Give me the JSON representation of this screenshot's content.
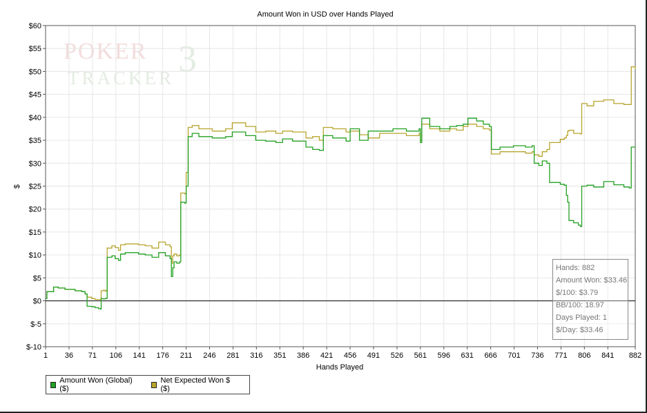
{
  "watermark": {
    "line1": "POKER",
    "line2": "TRACKER",
    "mark": "3"
  },
  "legend": [
    {
      "label": "Amount Won (Global) ($)",
      "color": "#22a022"
    },
    {
      "label": "Net Expected Won $ ($)",
      "color": "#b8a42c"
    }
  ],
  "stats": {
    "hands": "Hands: 882",
    "amount_won": "Amount Won: $33.46",
    "per100": "$/100: $3.79",
    "bb100": "BB/100: 18.97",
    "days": "Days Played: 1",
    "per_day": "$/Day: $33.46"
  },
  "chart_data": {
    "type": "line",
    "title": "Amount Won in USD over Hands Played",
    "xlabel": "Hands Played",
    "ylabel": "$",
    "xlim": [
      1,
      882
    ],
    "ylim": [
      -10,
      60
    ],
    "grid": true,
    "legend_position": "bottom-left",
    "x_ticks": [
      "1",
      "36",
      "71",
      "106",
      "141",
      "176",
      "211",
      "246",
      "281",
      "316",
      "351",
      "386",
      "421",
      "456",
      "491",
      "526",
      "561",
      "596",
      "631",
      "666",
      "701",
      "736",
      "771",
      "806",
      "841",
      "882"
    ],
    "y_ticks": [
      "$60",
      "$55",
      "$50",
      "$45",
      "$40",
      "$35",
      "$30",
      "$25",
      "$20",
      "$15",
      "$10",
      "$5",
      "$0",
      "$-5",
      "$-10"
    ],
    "series": [
      {
        "name": "Amount Won (Global) ($)",
        "color": "#22a022",
        "points": [
          [
            1,
            0.5
          ],
          [
            3,
            2
          ],
          [
            8,
            2
          ],
          [
            13,
            3
          ],
          [
            20,
            2.8
          ],
          [
            30,
            2.5
          ],
          [
            45,
            2.2
          ],
          [
            55,
            2
          ],
          [
            60,
            1.5
          ],
          [
            63,
            -1.2
          ],
          [
            70,
            -1.3
          ],
          [
            75,
            -1.5
          ],
          [
            80,
            -1.7
          ],
          [
            83,
            -1.8
          ],
          [
            84,
            0.5
          ],
          [
            87,
            0.4
          ],
          [
            90,
            0.5
          ],
          [
            92,
            0.6
          ],
          [
            93,
            9.5
          ],
          [
            100,
            9.8
          ],
          [
            105,
            9.2
          ],
          [
            110,
            8.8
          ],
          [
            113,
            10.2
          ],
          [
            120,
            10.5
          ],
          [
            140,
            10.2
          ],
          [
            150,
            10
          ],
          [
            160,
            9.5
          ],
          [
            170,
            10.5
          ],
          [
            180,
            9.8
          ],
          [
            187,
            9.2
          ],
          [
            189,
            5.3
          ],
          [
            191,
            7.2
          ],
          [
            193,
            8.5
          ],
          [
            197,
            8.2
          ],
          [
            201,
            8.5
          ],
          [
            203,
            21.5
          ],
          [
            209,
            21.3
          ],
          [
            211,
            25
          ],
          [
            214,
            35.8
          ],
          [
            220,
            36.5
          ],
          [
            230,
            35.8
          ],
          [
            250,
            35.5
          ],
          [
            270,
            35.8
          ],
          [
            280,
            36.8
          ],
          [
            300,
            36
          ],
          [
            315,
            35
          ],
          [
            330,
            34.8
          ],
          [
            345,
            34.5
          ],
          [
            355,
            35.3
          ],
          [
            370,
            34.8
          ],
          [
            390,
            33.5
          ],
          [
            400,
            33
          ],
          [
            410,
            32.8
          ],
          [
            416,
            36
          ],
          [
            430,
            35.5
          ],
          [
            450,
            34.8
          ],
          [
            456,
            37.5
          ],
          [
            470,
            35
          ],
          [
            483,
            37
          ],
          [
            500,
            37
          ],
          [
            520,
            37.5
          ],
          [
            540,
            37
          ],
          [
            555,
            37
          ],
          [
            559,
            37.5
          ],
          [
            561,
            34.5
          ],
          [
            563,
            39.8
          ],
          [
            575,
            38
          ],
          [
            590,
            37.5
          ],
          [
            605,
            38
          ],
          [
            615,
            38.2
          ],
          [
            625,
            38.5
          ],
          [
            632,
            39.8
          ],
          [
            645,
            39.2
          ],
          [
            655,
            38.5
          ],
          [
            664,
            38
          ],
          [
            667,
            33
          ],
          [
            680,
            33.5
          ],
          [
            700,
            33.8
          ],
          [
            718,
            33.5
          ],
          [
            728,
            33.8
          ],
          [
            731,
            30
          ],
          [
            738,
            29.5
          ],
          [
            743,
            30.5
          ],
          [
            750,
            30
          ],
          [
            754,
            25.8
          ],
          [
            770,
            25.4
          ],
          [
            776,
            25.2
          ],
          [
            779,
            23
          ],
          [
            781,
            21.5
          ],
          [
            783,
            17.5
          ],
          [
            790,
            17
          ],
          [
            797,
            16.5
          ],
          [
            800,
            16.2
          ],
          [
            802,
            25
          ],
          [
            810,
            25.2
          ],
          [
            820,
            24.8
          ],
          [
            835,
            26
          ],
          [
            850,
            25.3
          ],
          [
            865,
            24.8
          ],
          [
            873,
            24.6
          ],
          [
            876,
            33.5
          ],
          [
            882,
            33.46
          ]
        ]
      },
      {
        "name": "Net Expected Won $ ($)",
        "color": "#b8a42c",
        "points": [
          [
            1,
            0.5
          ],
          [
            3,
            2
          ],
          [
            8,
            2
          ],
          [
            13,
            3
          ],
          [
            20,
            2.8
          ],
          [
            30,
            2.5
          ],
          [
            45,
            2.2
          ],
          [
            55,
            2
          ],
          [
            60,
            1.5
          ],
          [
            63,
            0.8
          ],
          [
            70,
            0.5
          ],
          [
            75,
            0.3
          ],
          [
            80,
            0.3
          ],
          [
            83,
            0.3
          ],
          [
            84,
            2.2
          ],
          [
            87,
            2.3
          ],
          [
            90,
            2.1
          ],
          [
            92,
            2.3
          ],
          [
            93,
            11.5
          ],
          [
            100,
            12
          ],
          [
            105,
            11.6
          ],
          [
            110,
            11
          ],
          [
            113,
            12.2
          ],
          [
            120,
            12.4
          ],
          [
            140,
            12.2
          ],
          [
            150,
            12
          ],
          [
            160,
            11.5
          ],
          [
            170,
            12.8
          ],
          [
            180,
            12.2
          ],
          [
            187,
            11.8
          ],
          [
            189,
            8.2
          ],
          [
            191,
            9.8
          ],
          [
            193,
            10.2
          ],
          [
            197,
            9.8
          ],
          [
            201,
            10
          ],
          [
            203,
            23.5
          ],
          [
            209,
            23.3
          ],
          [
            211,
            28
          ],
          [
            214,
            37.8
          ],
          [
            220,
            38.2
          ],
          [
            230,
            37.5
          ],
          [
            250,
            37
          ],
          [
            270,
            37.5
          ],
          [
            280,
            38.8
          ],
          [
            300,
            38
          ],
          [
            315,
            36.8
          ],
          [
            330,
            37
          ],
          [
            345,
            36.5
          ],
          [
            355,
            37
          ],
          [
            370,
            36.8
          ],
          [
            390,
            35.5
          ],
          [
            400,
            35.8
          ],
          [
            410,
            35
          ],
          [
            416,
            37.8
          ],
          [
            430,
            37.5
          ],
          [
            450,
            36.8
          ],
          [
            456,
            37
          ],
          [
            470,
            36.2
          ],
          [
            483,
            35.5
          ],
          [
            500,
            36.5
          ],
          [
            520,
            36.5
          ],
          [
            540,
            36
          ],
          [
            555,
            36
          ],
          [
            559,
            36.5
          ],
          [
            561,
            35
          ],
          [
            563,
            38.5
          ],
          [
            575,
            37.5
          ],
          [
            590,
            37
          ],
          [
            605,
            37.5
          ],
          [
            615,
            37.2
          ],
          [
            625,
            38
          ],
          [
            632,
            38.5
          ],
          [
            645,
            38
          ],
          [
            655,
            37.5
          ],
          [
            664,
            37.2
          ],
          [
            667,
            32
          ],
          [
            680,
            32.5
          ],
          [
            700,
            32.5
          ],
          [
            718,
            32.2
          ],
          [
            728,
            32.5
          ],
          [
            731,
            31.8
          ],
          [
            738,
            31.5
          ],
          [
            743,
            32.5
          ],
          [
            750,
            33
          ],
          [
            754,
            34.5
          ],
          [
            770,
            35.2
          ],
          [
            776,
            35.5
          ],
          [
            779,
            36
          ],
          [
            781,
            37
          ],
          [
            783,
            37.2
          ],
          [
            790,
            36.5
          ],
          [
            797,
            36.5
          ],
          [
            800,
            36.4
          ],
          [
            802,
            43
          ],
          [
            810,
            42.5
          ],
          [
            820,
            43.5
          ],
          [
            835,
            43.8
          ],
          [
            850,
            43
          ],
          [
            865,
            42.8
          ],
          [
            873,
            42.8
          ],
          [
            876,
            51
          ],
          [
            882,
            50.5
          ]
        ]
      }
    ]
  }
}
